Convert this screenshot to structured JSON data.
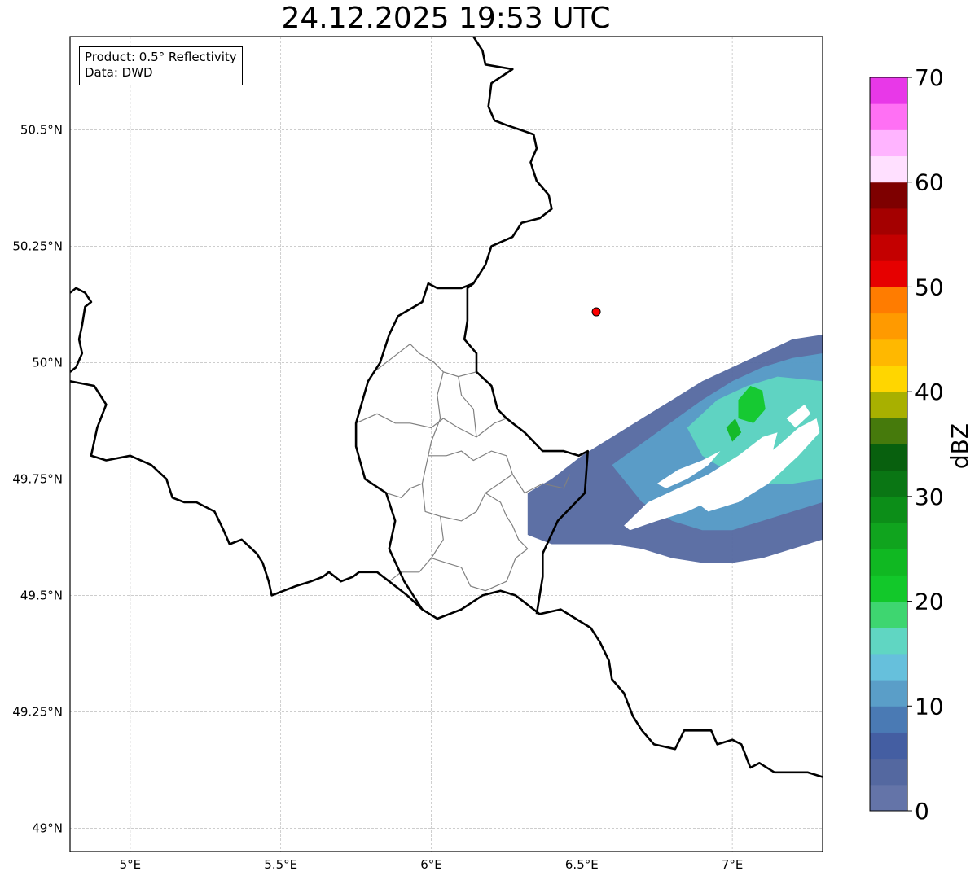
{
  "title": "24.12.2025 19:53 UTC",
  "info": {
    "product_prefix": "Product: ",
    "product": "0.5° Reflectivity",
    "data_prefix": "Data: ",
    "data_source": "DWD"
  },
  "axes": {
    "lon_range": [
      4.8,
      7.3
    ],
    "lat_range": [
      48.95,
      50.7
    ],
    "x_ticks": [
      {
        "value": 5.0,
        "label": "5°E"
      },
      {
        "value": 5.5,
        "label": "5.5°E"
      },
      {
        "value": 6.0,
        "label": "6°E"
      },
      {
        "value": 6.5,
        "label": "6.5°E"
      },
      {
        "value": 7.0,
        "label": "7°E"
      }
    ],
    "y_ticks": [
      {
        "value": 50.5,
        "label": "50.5°N"
      },
      {
        "value": 50.25,
        "label": "50.25°N"
      },
      {
        "value": 50.0,
        "label": "50°N"
      },
      {
        "value": 49.75,
        "label": "49.75°N"
      },
      {
        "value": 49.5,
        "label": "49.5°N"
      },
      {
        "value": 49.25,
        "label": "49.25°N"
      },
      {
        "value": 49.0,
        "label": "49°N"
      }
    ],
    "gridlines": true
  },
  "marker": {
    "name": "radar-site",
    "lon": 6.548,
    "lat": 50.109,
    "color": "#ff0000"
  },
  "colorbar": {
    "label": "dBZ",
    "range": [
      0,
      70
    ],
    "step": 2.5,
    "ticks": [
      {
        "value": 0,
        "label": "0"
      },
      {
        "value": 10,
        "label": "10"
      },
      {
        "value": 20,
        "label": "20"
      },
      {
        "value": 30,
        "label": "30"
      },
      {
        "value": 40,
        "label": "40"
      },
      {
        "value": 50,
        "label": "50"
      },
      {
        "value": 60,
        "label": "60"
      },
      {
        "value": 70,
        "label": "70"
      }
    ],
    "colors": [
      "#6474a8",
      "#5468a0",
      "#445ea2",
      "#4a7ab4",
      "#5a9ec8",
      "#66c0dc",
      "#60d6c2",
      "#3ed670",
      "#12c82a",
      "#10b822",
      "#10a41e",
      "#0c8e18",
      "#0a7614",
      "#08600e",
      "#467a0c",
      "#a8b000",
      "#ffd600",
      "#ffb800",
      "#ff9a00",
      "#ff7c00",
      "#e60000",
      "#c40000",
      "#a40000",
      "#7e0000",
      "#ffe0ff",
      "#ffb4ff",
      "#ff70f4",
      "#e838e8"
    ]
  },
  "borders": {
    "country": [
      [
        [
          4.8,
          49.96
        ],
        [
          4.88,
          49.95
        ],
        [
          4.92,
          49.91
        ],
        [
          4.89,
          49.86
        ],
        [
          4.87,
          49.8
        ],
        [
          4.92,
          49.79
        ],
        [
          5.0,
          49.8
        ],
        [
          5.07,
          49.78
        ],
        [
          5.12,
          49.75
        ],
        [
          5.14,
          49.71
        ],
        [
          5.18,
          49.7
        ],
        [
          5.22,
          49.7
        ],
        [
          5.28,
          49.68
        ],
        [
          5.31,
          49.64
        ],
        [
          5.33,
          49.61
        ],
        [
          5.37,
          49.62
        ],
        [
          5.42,
          49.59
        ],
        [
          5.44,
          49.57
        ],
        [
          5.46,
          49.53
        ],
        [
          5.47,
          49.5
        ],
        [
          5.51,
          49.51
        ],
        [
          5.55,
          49.52
        ],
        [
          5.6,
          49.53
        ],
        [
          5.64,
          49.54
        ],
        [
          5.66,
          49.55
        ],
        [
          5.7,
          49.53
        ],
        [
          5.74,
          49.54
        ],
        [
          5.76,
          49.55
        ],
        [
          5.82,
          49.55
        ],
        [
          5.86,
          49.53
        ],
        [
          5.92,
          49.5
        ],
        [
          5.97,
          49.47
        ],
        [
          6.02,
          49.45
        ],
        [
          6.06,
          49.46
        ],
        [
          6.1,
          49.47
        ],
        [
          6.17,
          49.5
        ],
        [
          6.23,
          49.51
        ],
        [
          6.28,
          49.5
        ],
        [
          6.34,
          49.47
        ],
        [
          6.36,
          49.46
        ],
        [
          6.43,
          49.47
        ],
        [
          6.48,
          49.45
        ],
        [
          6.53,
          49.43
        ],
        [
          6.56,
          49.4
        ],
        [
          6.59,
          49.36
        ],
        [
          6.6,
          49.32
        ],
        [
          6.64,
          49.29
        ],
        [
          6.67,
          49.24
        ],
        [
          6.7,
          49.21
        ],
        [
          6.74,
          49.18
        ],
        [
          6.81,
          49.17
        ],
        [
          6.84,
          49.21
        ],
        [
          6.88,
          49.21
        ],
        [
          6.93,
          49.21
        ],
        [
          6.95,
          49.18
        ],
        [
          7.0,
          49.19
        ],
        [
          7.03,
          49.18
        ],
        [
          7.06,
          49.13
        ],
        [
          7.09,
          49.14
        ],
        [
          7.14,
          49.12
        ],
        [
          7.2,
          49.12
        ],
        [
          7.25,
          49.12
        ],
        [
          7.3,
          49.11
        ]
      ],
      [
        [
          4.8,
          50.15
        ],
        [
          4.82,
          50.16
        ],
        [
          4.85,
          50.15
        ],
        [
          4.87,
          50.13
        ],
        [
          4.85,
          50.12
        ],
        [
          4.84,
          50.08
        ],
        [
          4.83,
          50.05
        ],
        [
          4.84,
          50.02
        ],
        [
          4.82,
          49.99
        ],
        [
          4.8,
          49.98
        ]
      ],
      [
        [
          6.14,
          50.7
        ],
        [
          6.17,
          50.67
        ],
        [
          6.18,
          50.64
        ],
        [
          6.27,
          50.63
        ],
        [
          6.2,
          50.6
        ],
        [
          6.19,
          50.55
        ],
        [
          6.21,
          50.52
        ],
        [
          6.25,
          50.51
        ],
        [
          6.34,
          50.49
        ],
        [
          6.35,
          50.46
        ],
        [
          6.33,
          50.43
        ],
        [
          6.35,
          50.39
        ],
        [
          6.39,
          50.36
        ],
        [
          6.4,
          50.33
        ],
        [
          6.36,
          50.31
        ],
        [
          6.3,
          50.3
        ],
        [
          6.27,
          50.27
        ],
        [
          6.2,
          50.25
        ],
        [
          6.18,
          50.21
        ],
        [
          6.14,
          50.17
        ],
        [
          6.12,
          50.16
        ],
        [
          6.12,
          50.13
        ],
        [
          6.12,
          50.09
        ],
        [
          6.11,
          50.05
        ],
        [
          6.15,
          50.02
        ],
        [
          6.15,
          49.98
        ],
        [
          6.2,
          49.95
        ],
        [
          6.22,
          49.9
        ],
        [
          6.25,
          49.88
        ],
        [
          6.31,
          49.85
        ],
        [
          6.37,
          49.81
        ],
        [
          6.44,
          49.81
        ],
        [
          6.49,
          49.8
        ],
        [
          6.52,
          49.81
        ],
        [
          6.51,
          49.72
        ],
        [
          6.42,
          49.66
        ],
        [
          6.37,
          49.59
        ],
        [
          6.37,
          49.54
        ],
        [
          6.35,
          49.46
        ]
      ],
      [
        [
          6.14,
          50.17
        ],
        [
          6.1,
          50.16
        ],
        [
          6.03,
          50.16
        ],
        [
          6.02,
          50.16
        ],
        [
          5.99,
          50.17
        ],
        [
          5.97,
          50.13
        ],
        [
          5.89,
          50.1
        ],
        [
          5.86,
          50.06
        ],
        [
          5.83,
          50.0
        ],
        [
          5.79,
          49.96
        ],
        [
          5.75,
          49.87
        ],
        [
          5.75,
          49.82
        ],
        [
          5.78,
          49.75
        ],
        [
          5.85,
          49.72
        ],
        [
          5.88,
          49.66
        ],
        [
          5.86,
          49.6
        ],
        [
          5.91,
          49.53
        ],
        [
          5.97,
          49.47
        ]
      ]
    ],
    "districts": [
      [
        [
          5.81,
          49.98
        ],
        [
          5.87,
          50.01
        ],
        [
          5.93,
          50.04
        ],
        [
          5.96,
          50.02
        ],
        [
          6.01,
          50.0
        ],
        [
          6.04,
          49.98
        ],
        [
          6.09,
          49.97
        ],
        [
          6.15,
          49.98
        ]
      ],
      [
        [
          5.75,
          49.87
        ],
        [
          5.82,
          49.89
        ],
        [
          5.88,
          49.87
        ],
        [
          5.93,
          49.87
        ],
        [
          6.0,
          49.86
        ],
        [
          6.04,
          49.88
        ],
        [
          6.09,
          49.86
        ],
        [
          6.15,
          49.84
        ],
        [
          6.21,
          49.87
        ],
        [
          6.25,
          49.88
        ]
      ],
      [
        [
          6.04,
          49.98
        ],
        [
          6.02,
          49.93
        ],
        [
          6.03,
          49.88
        ],
        [
          6.0,
          49.83
        ],
        [
          5.99,
          49.8
        ]
      ],
      [
        [
          6.09,
          49.97
        ],
        [
          6.1,
          49.93
        ],
        [
          6.14,
          49.9
        ],
        [
          6.15,
          49.84
        ]
      ],
      [
        [
          5.99,
          49.8
        ],
        [
          6.05,
          49.8
        ],
        [
          6.1,
          49.81
        ],
        [
          6.14,
          49.79
        ],
        [
          6.2,
          49.81
        ],
        [
          6.25,
          49.8
        ],
        [
          6.27,
          49.76
        ],
        [
          6.31,
          49.72
        ],
        [
          6.37,
          49.74
        ],
        [
          6.44,
          49.73
        ],
        [
          6.46,
          49.76
        ]
      ],
      [
        [
          5.85,
          49.72
        ],
        [
          5.9,
          49.71
        ],
        [
          5.93,
          49.73
        ],
        [
          5.97,
          49.74
        ],
        [
          5.99,
          49.8
        ]
      ],
      [
        [
          5.97,
          49.74
        ],
        [
          5.98,
          49.68
        ],
        [
          6.03,
          49.67
        ],
        [
          6.1,
          49.66
        ],
        [
          6.15,
          49.68
        ],
        [
          6.18,
          49.72
        ],
        [
          6.27,
          49.76
        ]
      ],
      [
        [
          6.18,
          49.72
        ],
        [
          6.23,
          49.7
        ],
        [
          6.25,
          49.67
        ],
        [
          6.27,
          49.65
        ],
        [
          6.29,
          49.62
        ],
        [
          6.32,
          49.6
        ]
      ],
      [
        [
          6.03,
          49.67
        ],
        [
          6.04,
          49.62
        ],
        [
          6.0,
          49.58
        ],
        [
          5.96,
          49.55
        ],
        [
          5.9,
          49.55
        ],
        [
          5.86,
          49.53
        ]
      ],
      [
        [
          6.0,
          49.58
        ],
        [
          6.05,
          49.57
        ],
        [
          6.1,
          49.56
        ],
        [
          6.13,
          49.52
        ],
        [
          6.18,
          49.51
        ],
        [
          6.25,
          49.53
        ],
        [
          6.28,
          49.58
        ],
        [
          6.32,
          49.6
        ]
      ]
    ]
  },
  "precip_cells": [
    {
      "ring": [
        [
          6.32,
          49.72
        ],
        [
          6.4,
          49.75
        ],
        [
          6.5,
          49.8
        ],
        [
          6.6,
          49.84
        ],
        [
          6.7,
          49.88
        ],
        [
          6.8,
          49.92
        ],
        [
          6.9,
          49.96
        ],
        [
          7.0,
          49.99
        ],
        [
          7.1,
          50.02
        ],
        [
          7.2,
          50.05
        ],
        [
          7.3,
          50.06
        ],
        [
          7.3,
          49.62
        ],
        [
          7.2,
          49.6
        ],
        [
          7.1,
          49.58
        ],
        [
          7.0,
          49.57
        ],
        [
          6.9,
          49.57
        ],
        [
          6.8,
          49.58
        ],
        [
          6.7,
          49.6
        ],
        [
          6.6,
          49.61
        ],
        [
          6.5,
          49.61
        ],
        [
          6.4,
          49.61
        ],
        [
          6.32,
          49.63
        ]
      ],
      "dbz": 3.5
    },
    {
      "ring": [
        [
          6.6,
          49.78
        ],
        [
          6.75,
          49.85
        ],
        [
          6.9,
          49.92
        ],
        [
          7.0,
          49.96
        ],
        [
          7.1,
          49.99
        ],
        [
          7.2,
          50.01
        ],
        [
          7.3,
          50.02
        ],
        [
          7.3,
          49.7
        ],
        [
          7.2,
          49.68
        ],
        [
          7.1,
          49.66
        ],
        [
          7.0,
          49.64
        ],
        [
          6.9,
          49.64
        ],
        [
          6.8,
          49.66
        ],
        [
          6.7,
          49.7
        ]
      ],
      "dbz": 10.5
    },
    {
      "ring": [
        [
          6.85,
          49.86
        ],
        [
          6.95,
          49.92
        ],
        [
          7.05,
          49.95
        ],
        [
          7.15,
          49.97
        ],
        [
          7.3,
          49.96
        ],
        [
          7.3,
          49.75
        ],
        [
          7.2,
          49.74
        ],
        [
          7.1,
          49.74
        ],
        [
          7.0,
          49.76
        ],
        [
          6.9,
          49.8
        ]
      ],
      "dbz": 16
    },
    {
      "ring": [
        [
          7.02,
          49.92
        ],
        [
          7.06,
          49.95
        ],
        [
          7.1,
          49.94
        ],
        [
          7.11,
          49.9
        ],
        [
          7.07,
          49.87
        ],
        [
          7.02,
          49.88
        ]
      ],
      "dbz": 22
    },
    {
      "ring": [
        [
          6.98,
          49.86
        ],
        [
          7.01,
          49.88
        ],
        [
          7.03,
          49.85
        ],
        [
          7.0,
          49.83
        ]
      ],
      "dbz": 24
    }
  ],
  "precip_gaps": [
    {
      "ring": [
        [
          6.64,
          49.65
        ],
        [
          6.72,
          49.7
        ],
        [
          6.82,
          49.73
        ],
        [
          6.92,
          49.76
        ],
        [
          7.02,
          49.8
        ],
        [
          7.1,
          49.84
        ],
        [
          7.15,
          49.85
        ],
        [
          7.13,
          49.8
        ],
        [
          7.05,
          49.75
        ],
        [
          6.95,
          49.71
        ],
        [
          6.85,
          49.68
        ],
        [
          6.75,
          49.66
        ],
        [
          6.66,
          49.64
        ]
      ]
    },
    {
      "ring": [
        [
          6.88,
          49.7
        ],
        [
          6.96,
          49.73
        ],
        [
          7.05,
          49.77
        ],
        [
          7.15,
          49.82
        ],
        [
          7.22,
          49.86
        ],
        [
          7.28,
          49.88
        ],
        [
          7.29,
          49.85
        ],
        [
          7.22,
          49.8
        ],
        [
          7.12,
          49.74
        ],
        [
          7.02,
          49.7
        ],
        [
          6.92,
          49.68
        ]
      ]
    },
    {
      "ring": [
        [
          6.75,
          49.74
        ],
        [
          6.82,
          49.77
        ],
        [
          6.9,
          49.79
        ],
        [
          6.96,
          49.81
        ],
        [
          6.92,
          49.78
        ],
        [
          6.85,
          49.75
        ],
        [
          6.78,
          49.73
        ]
      ]
    },
    {
      "ring": [
        [
          7.18,
          49.88
        ],
        [
          7.24,
          49.91
        ],
        [
          7.26,
          49.89
        ],
        [
          7.21,
          49.86
        ]
      ]
    }
  ]
}
